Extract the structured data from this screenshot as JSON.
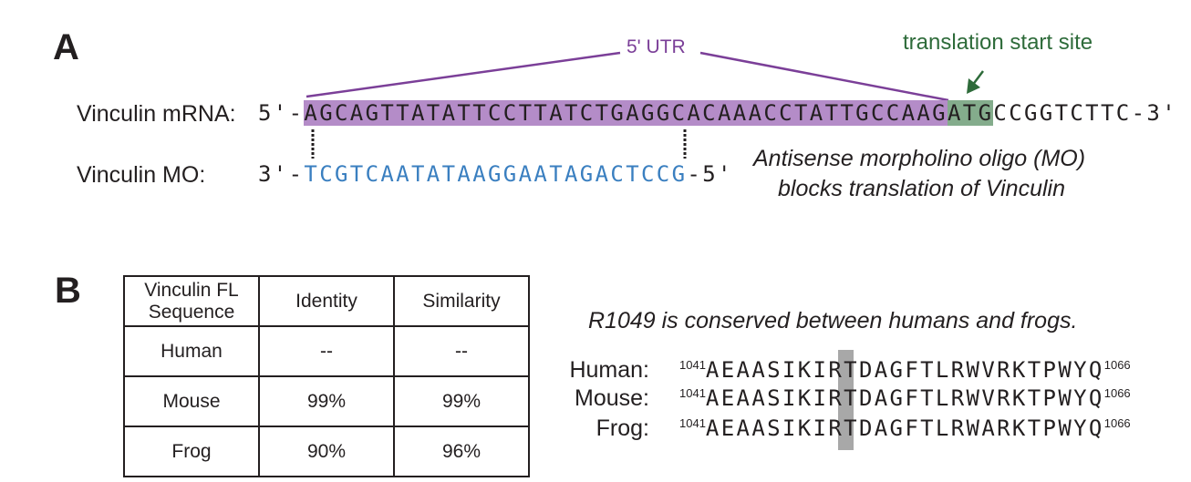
{
  "panel_a": {
    "label": "A",
    "utr_label": "5' UTR",
    "start_site_label": "translation start site",
    "mrna_label": "Vinculin mRNA:",
    "mrna_prefix": "5'-",
    "mrna_utr": "AGCAGTTATATTCCTTATCTGAGGCACAAACCTATTGCCAAG",
    "mrna_start": "ATG",
    "mrna_rest": "CCGGTCTTC",
    "mrna_suffix": "-3'",
    "mo_label": "Vinculin MO:",
    "mo_prefix": "3'-",
    "mo_seq": "TCGTCAATATAAGGAATAGACTCCG",
    "mo_suffix": "-5'",
    "note_line1": "Antisense morpholino oligo (MO)",
    "note_line2": "blocks translation of Vinculin",
    "colors": {
      "utr": "#b48cc8",
      "start": "#84ac8c",
      "utr_text": "#7b3f98",
      "start_text": "#2e6b3a",
      "mo": "#3a7fc0"
    }
  },
  "panel_b": {
    "label": "B",
    "table": {
      "headers": [
        "Vinculin FL Sequence",
        "Identity",
        "Similarity"
      ],
      "rows": [
        [
          "Human",
          "--",
          "--"
        ],
        [
          "Mouse",
          "99%",
          "99%"
        ],
        [
          "Frog",
          "90%",
          "96%"
        ]
      ]
    },
    "alignment_title": "R1049 is conserved between humans and frogs.",
    "alignment": [
      {
        "species": "Human:",
        "start": "1041",
        "before": "AEAASIKI",
        "highlight": "R",
        "after": "TDAGFTLRWVRKTPWYQ",
        "end": "1066"
      },
      {
        "species": "Mouse:",
        "start": "1041",
        "before": "AEAASIKI",
        "highlight": "R",
        "after": "TDAGFTLRWVRKTPWYQ",
        "end": "1066"
      },
      {
        "species": "Frog:",
        "start": "1041",
        "before": "AEAASIKI",
        "highlight": "R",
        "after": "TDAGFTLRWARKTPWYQ",
        "end": "1066"
      }
    ]
  }
}
